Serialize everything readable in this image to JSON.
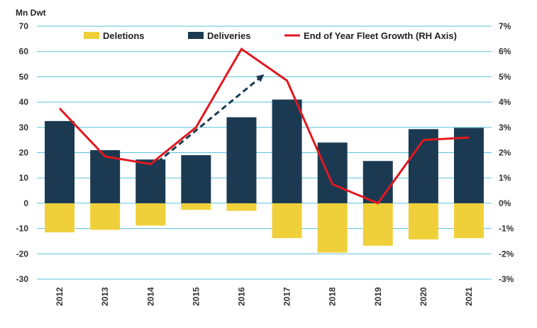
{
  "chart_data": {
    "type": "bar",
    "title": "",
    "ylabel": "Mn Dwt",
    "y2label_ticks_format": "percent",
    "categories": [
      "2012",
      "2013",
      "2014",
      "2015",
      "2016",
      "2017",
      "2018",
      "2019",
      "2020",
      "2021"
    ],
    "ylim": [
      -30,
      70
    ],
    "y2lim": [
      -3,
      7
    ],
    "yticks": [
      "70",
      "60",
      "50",
      "40",
      "30",
      "20",
      "10",
      "0",
      "-10",
      "-20",
      "-30"
    ],
    "y2ticks": [
      "7%",
      "6%",
      "5%",
      "4%",
      "3%",
      "2%",
      "1%",
      "0%",
      "-1%",
      "-2%",
      "-3%"
    ],
    "series": [
      {
        "name": "Deletions",
        "type": "bar",
        "axis": "left",
        "color": "#F0D03A",
        "values": [
          -11.5,
          -10.5,
          -8.8,
          -2.6,
          -3.0,
          -13.8,
          -19.5,
          -16.8,
          -14.3,
          -13.8
        ]
      },
      {
        "name": "Deliveries",
        "type": "bar",
        "axis": "left",
        "color": "#1B3A52",
        "values": [
          32.5,
          21.0,
          17.3,
          19.0,
          34.0,
          41.0,
          24.0,
          16.7,
          29.3,
          29.8
        ]
      },
      {
        "name": "End of Year Fleet Growth (RH Axis)",
        "type": "line",
        "axis": "right",
        "color": "#E3171E",
        "values": [
          3.75,
          1.85,
          1.55,
          3.0,
          6.1,
          4.85,
          0.75,
          0.0,
          2.5,
          2.6
        ]
      }
    ],
    "annotation": {
      "type": "dashed-arrow",
      "color": "#1B3A52",
      "from": [
        2014,
        14
      ],
      "to": [
        2016.5,
        51
      ]
    },
    "grid": true,
    "legend_position": "top"
  }
}
